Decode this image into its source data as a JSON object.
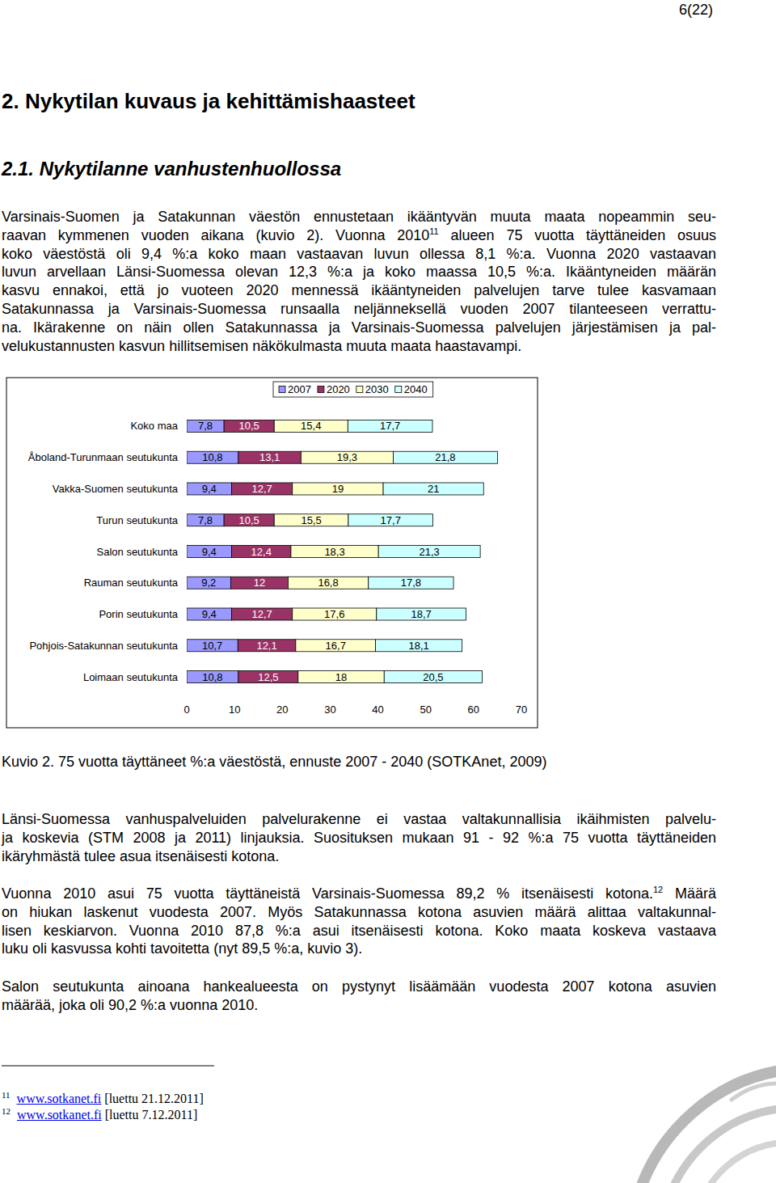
{
  "page_number": "6(22)",
  "heading": "2. Nykytilan kuvaus ja kehittämishaasteet",
  "subheading": "2.1. Nykytilanne vanhustenhuollossa",
  "intro": {
    "lines": [
      "Varsinais-Suomen ja Satakunnan väestön ennustetaan ikääntyvän muuta maata nopeammin seu-",
      {
        "before": "raavan kymmenen vuoden aikana (kuvio 2). Vuonna 2010",
        "ref": "11",
        "after": " alueen 75 vuotta täyttäneiden osuus"
      },
      "koko väestöstä oli 9,4 %:a koko maan vastaavan luvun ollessa 8,1 %:a. Vuonna 2020 vastaavan",
      "luvun arvellaan Länsi-Suomessa olevan 12,3 %:a ja koko maassa 10,5 %:a. Ikääntyneiden määrän",
      "kasvu ennakoi, että jo vuoteen 2020 mennessä ikääntyneiden palvelujen tarve tulee kasvamaan",
      "Satakunnassa ja Varsinais-Suomessa runsaalla neljänneksellä vuoden 2007 tilanteeseen verrattu-",
      "na. Ikärakenne on näin ollen Satakunnassa ja Varsinais-Suomessa palvelujen järjestämisen ja pal-",
      "velukustannusten kasvun hillitsemisen näkökulmasta muuta maata haastavampi."
    ]
  },
  "chart_data": {
    "type": "bar",
    "orientation": "horizontal",
    "stacked": true,
    "data_labels": true,
    "legend": "top",
    "grid": false,
    "categories": [
      "Koko maa",
      "Åboland-Turunmaan seutukunta",
      "Vakka-Suomen seutukunta",
      "Turun seutukunta",
      "Salon seutukunta",
      "Rauman seutukunta",
      "Porin seutukunta",
      "Pohjois-Satakunnan seutukunta",
      "Loimaan seutukunta"
    ],
    "series": [
      {
        "name": "2007",
        "color": "#9999ff",
        "values": [
          7.8,
          10.8,
          9.4,
          7.8,
          9.4,
          9.2,
          9.4,
          10.7,
          10.8
        ],
        "value_labels": [
          "7,8",
          "10,8",
          "9,4",
          "7,8",
          "9,4",
          "9,2",
          "9,4",
          "10,7",
          "10,8"
        ]
      },
      {
        "name": "2020",
        "color": "#993366",
        "values": [
          10.5,
          13.1,
          12.7,
          10.5,
          12.4,
          12,
          12.7,
          12.1,
          12.5
        ],
        "value_labels": [
          "10,5",
          "13,1",
          "12,7",
          "10,5",
          "12,4",
          "12",
          "12,7",
          "12,1",
          "12,5"
        ]
      },
      {
        "name": "2030",
        "color": "#ffffcc",
        "values": [
          15.4,
          19.3,
          19,
          15.5,
          18.3,
          16.8,
          17.6,
          16.7,
          18
        ],
        "value_labels": [
          "15,4",
          "19,3",
          "19",
          "15,5",
          "18,3",
          "16,8",
          "17,6",
          "16,7",
          "18"
        ]
      },
      {
        "name": "2040",
        "color": "#ccffff",
        "values": [
          17.7,
          21.8,
          21,
          17.7,
          21.3,
          17.8,
          18.7,
          18.1,
          20.5
        ],
        "value_labels": [
          "17,7",
          "21,8",
          "21",
          "17,7",
          "21,3",
          "17,8",
          "18,7",
          "18,1",
          "20,5"
        ]
      }
    ],
    "xlim": [
      0,
      70
    ],
    "xticks": [
      0,
      10,
      20,
      30,
      40,
      50,
      60,
      70
    ]
  },
  "caption": "Kuvio 2. 75 vuotta täyttäneet %:a väestöstä, ennuste 2007 - 2040 (SOTKAnet, 2009)",
  "paragraphs": [
    {
      "lines": [
        "Länsi-Suomessa vanhuspalveluiden palvelurakenne ei vastaa valtakunnallisia ikäihmisten palvelu-",
        "ja koskevia (STM 2008 ja 2011) linjauksia. Suosituksen mukaan 91 - 92 %:a 75 vuotta täyttäneiden",
        "ikäryhmästä tulee asua itsenäisesti kotona."
      ]
    },
    {
      "lines": [
        {
          "before": "Vuonna 2010 asui 75 vuotta täyttäneistä Varsinais-Suomessa 89,2 % itsenäisesti kotona.",
          "ref": "12",
          "after": " Määrä"
        },
        "on hiukan laskenut vuodesta 2007. Myös Satakunnassa kotona asuvien määrä alittaa valtakunnal-",
        "lisen keskiarvon. Vuonna 2010 87,8 %:a asui itsenäisesti kotona. Koko maata koskeva vastaava",
        "luku oli kasvussa kohti tavoitetta (nyt 89,5 %:a, kuvio 3)."
      ]
    },
    {
      "lines": [
        "Salon seutukunta ainoana hankealueesta on pystynyt lisäämään vuodesta 2007 kotona asuvien",
        "määrää, joka oli 90,2 %:a vuonna 2010."
      ]
    }
  ],
  "footnotes": [
    {
      "ref": "11",
      "link": "www.sotkanet.fi",
      "text": " [luettu 21.12.2011]"
    },
    {
      "ref": "12",
      "link": "www.sotkanet.fi",
      "text": " [luettu 7.12.2011]"
    }
  ]
}
